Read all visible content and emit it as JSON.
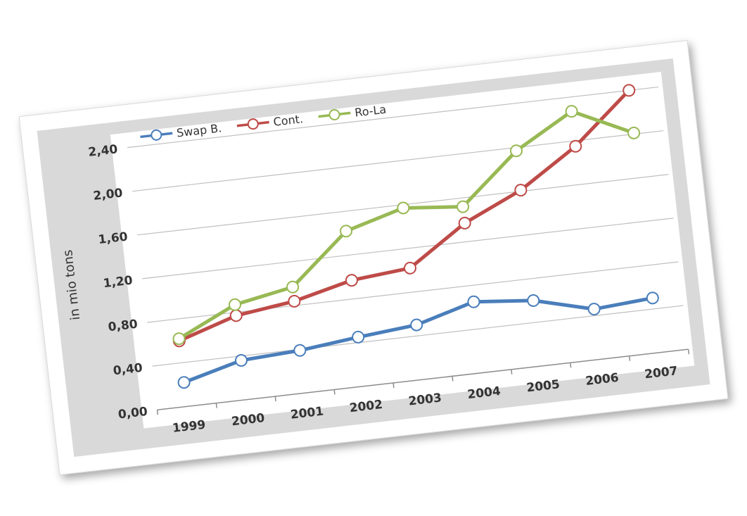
{
  "chart_data": {
    "type": "line",
    "title": "",
    "xlabel": "",
    "ylabel": "in mio tons",
    "categories": [
      "1999",
      "2000",
      "2001",
      "2002",
      "2003",
      "2004",
      "2005",
      "2006",
      "2007"
    ],
    "y_ticks": [
      "0,00",
      "0,40",
      "0,80",
      "1,20",
      "1,60",
      "2,00",
      "2,40"
    ],
    "ylim": [
      0,
      2.4
    ],
    "grid": true,
    "legend_position": "top-left",
    "series": [
      {
        "name": "Swap B.",
        "color": "#4a7ebb",
        "values": [
          0.22,
          0.36,
          0.39,
          0.45,
          0.5,
          0.65,
          0.6,
          0.46,
          0.5
        ]
      },
      {
        "name": "Cont.",
        "color": "#be4b48",
        "values": [
          0.6,
          0.77,
          0.84,
          0.97,
          1.02,
          1.37,
          1.61,
          1.95,
          2.4
        ]
      },
      {
        "name": "Ro-La",
        "color": "#98b954",
        "values": [
          0.62,
          0.87,
          0.97,
          1.42,
          1.57,
          1.52,
          1.97,
          2.27,
          2.01
        ]
      }
    ]
  }
}
